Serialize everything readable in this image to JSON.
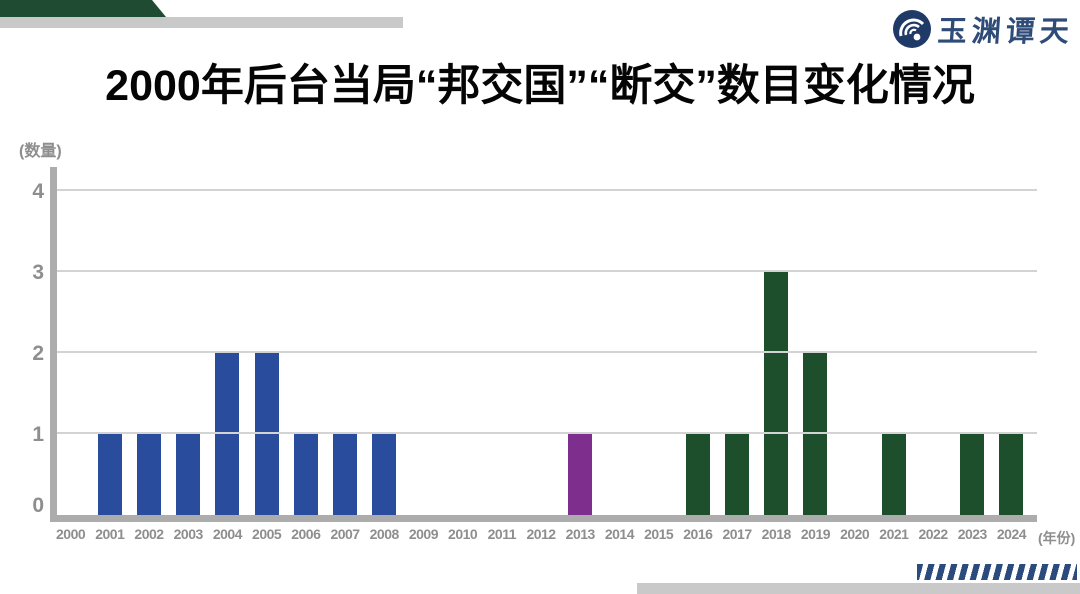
{
  "logo": {
    "text": "玉渊谭天"
  },
  "chart_data": {
    "type": "bar",
    "title": "2000年后台当局“邦交国”“断交”数目变化情况",
    "unit_y": "(数量)",
    "unit_x": "(年份)",
    "ylim": [
      0,
      4
    ],
    "yticks": [
      0,
      1,
      2,
      3,
      4
    ],
    "grid": true,
    "legend": "none",
    "bars": [
      {
        "year": "2000",
        "value": 0,
        "color": null
      },
      {
        "year": "2001",
        "value": 1,
        "color": "#2A4C9C"
      },
      {
        "year": "2002",
        "value": 1,
        "color": "#2A4C9C"
      },
      {
        "year": "2003",
        "value": 1,
        "color": "#2A4C9C"
      },
      {
        "year": "2004",
        "value": 2,
        "color": "#2A4C9C"
      },
      {
        "year": "2005",
        "value": 2,
        "color": "#2A4C9C"
      },
      {
        "year": "2006",
        "value": 1,
        "color": "#2A4C9C"
      },
      {
        "year": "2007",
        "value": 1,
        "color": "#2A4C9C"
      },
      {
        "year": "2008",
        "value": 1,
        "color": "#2A4C9C"
      },
      {
        "year": "2009",
        "value": 0,
        "color": null
      },
      {
        "year": "2010",
        "value": 0,
        "color": null
      },
      {
        "year": "2011",
        "value": 0,
        "color": null
      },
      {
        "year": "2012",
        "value": 0,
        "color": null
      },
      {
        "year": "2013",
        "value": 1,
        "color": "#7E2F8D"
      },
      {
        "year": "2014",
        "value": 0,
        "color": null
      },
      {
        "year": "2015",
        "value": 0,
        "color": null
      },
      {
        "year": "2016",
        "value": 1,
        "color": "#1D4F2D"
      },
      {
        "year": "2017",
        "value": 1,
        "color": "#1D4F2D"
      },
      {
        "year": "2018",
        "value": 3,
        "color": "#1D4F2D"
      },
      {
        "year": "2019",
        "value": 2,
        "color": "#1D4F2D"
      },
      {
        "year": "2020",
        "value": 0,
        "color": null
      },
      {
        "year": "2021",
        "value": 1,
        "color": "#1D4F2D"
      },
      {
        "year": "2022",
        "value": 0,
        "color": null
      },
      {
        "year": "2023",
        "value": 1,
        "color": "#1D4F2D"
      },
      {
        "year": "2024",
        "value": 1,
        "color": "#1D4F2D"
      }
    ]
  },
  "colors": {
    "bar_blue": "#2A4C9C",
    "bar_purple": "#7E2F8D",
    "bar_green": "#1D4F2D",
    "header_green": "#1E4B31",
    "decor_gray": "#C9C9C9",
    "axis_gray": "#ACACAC",
    "gridline_gray": "#D3D3D3",
    "label_gray": "#8E8E8E",
    "logo_navy": "#1F3A66",
    "logo_text_navy": "#2F4C78",
    "stripe_navy": "#2B4A7E",
    "title_black": "#050505"
  }
}
